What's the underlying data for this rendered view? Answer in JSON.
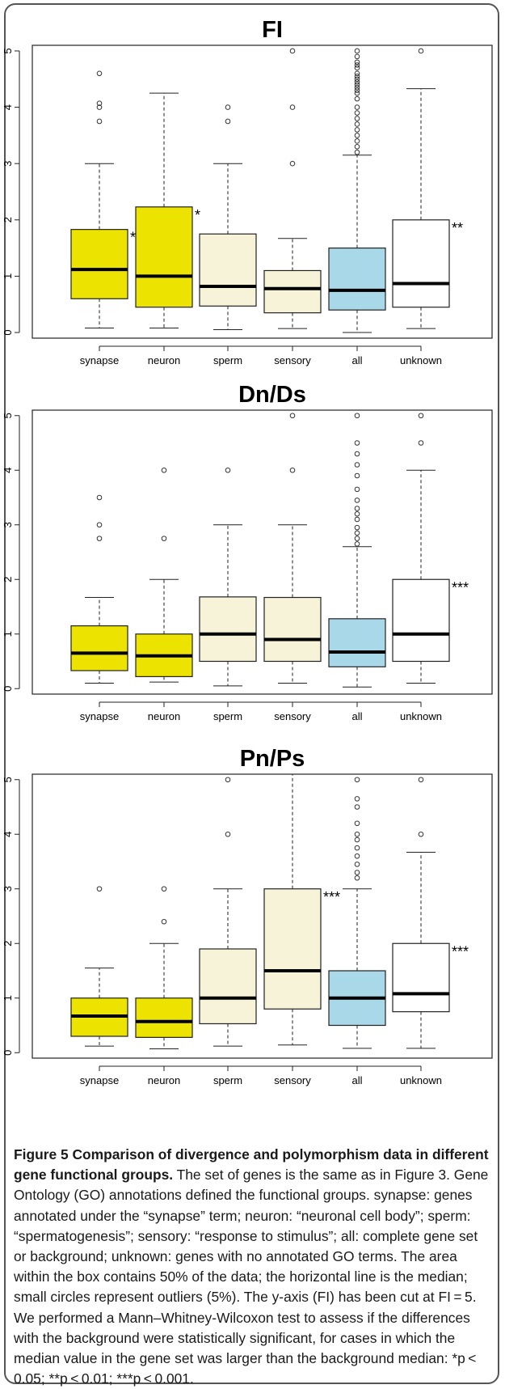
{
  "chart_data": [
    {
      "type": "box",
      "title": "FI",
      "categories": [
        "synapse",
        "neuron",
        "sperm",
        "sensory",
        "all",
        "unknown"
      ],
      "colors": [
        "#ece300",
        "#ece300",
        "#f7f3d8",
        "#f7f3d8",
        "#a9d9e8",
        "#ffffff"
      ],
      "yticks": [
        "0",
        "1",
        "2",
        "3",
        "4",
        "5"
      ],
      "ylim": [
        -0.1,
        5.1
      ],
      "boxes": [
        {
          "lw": 0.08,
          "q1": 0.6,
          "med": 1.12,
          "q3": 1.83,
          "uw": 3.0,
          "outliers": [
            3.75,
            4.0,
            4.07,
            4.6
          ]
        },
        {
          "lw": 0.08,
          "q1": 0.45,
          "med": 1.0,
          "q3": 2.23,
          "uw": 4.25,
          "outliers": []
        },
        {
          "lw": 0.05,
          "q1": 0.47,
          "med": 0.82,
          "q3": 1.75,
          "uw": 3.0,
          "outliers": [
            3.75,
            4.0
          ]
        },
        {
          "lw": 0.07,
          "q1": 0.35,
          "med": 0.78,
          "q3": 1.1,
          "uw": 1.67,
          "outliers": [
            3.0,
            4.0,
            5.0
          ]
        },
        {
          "lw": 0.0,
          "q1": 0.4,
          "med": 0.75,
          "q3": 1.5,
          "uw": 3.15,
          "outliers": [
            3.2,
            3.3,
            3.4,
            3.5,
            3.6,
            3.7,
            3.8,
            3.9,
            4.0,
            4.15,
            4.25,
            4.3,
            4.35,
            4.4,
            4.45,
            4.5,
            4.55,
            4.6,
            4.7,
            4.75,
            4.8,
            4.9,
            5.0
          ]
        },
        {
          "lw": 0.07,
          "q1": 0.45,
          "med": 0.87,
          "q3": 2.0,
          "uw": 4.33,
          "outliers": [
            5.0
          ]
        }
      ],
      "significance": [
        {
          "group": "synapse",
          "label": "*"
        },
        {
          "group": "neuron",
          "label": "*"
        },
        {
          "group": "unknown",
          "label": "**"
        }
      ]
    },
    {
      "type": "box",
      "title": "Dn/Ds",
      "categories": [
        "synapse",
        "neuron",
        "sperm",
        "sensory",
        "all",
        "unknown"
      ],
      "colors": [
        "#ece300",
        "#ece300",
        "#f7f3d8",
        "#f7f3d8",
        "#a9d9e8",
        "#ffffff"
      ],
      "yticks": [
        "0",
        "1",
        "2",
        "3",
        "4",
        "5"
      ],
      "ylim": [
        -0.1,
        5.1
      ],
      "boxes": [
        {
          "lw": 0.1,
          "q1": 0.33,
          "med": 0.65,
          "q3": 1.15,
          "uw": 1.67,
          "outliers": [
            2.75,
            3.0,
            3.5
          ]
        },
        {
          "lw": 0.12,
          "q1": 0.22,
          "med": 0.6,
          "q3": 1.0,
          "uw": 2.0,
          "outliers": [
            2.75,
            4.0
          ]
        },
        {
          "lw": 0.05,
          "q1": 0.5,
          "med": 1.0,
          "q3": 1.68,
          "uw": 3.0,
          "outliers": [
            4.0
          ]
        },
        {
          "lw": 0.1,
          "q1": 0.5,
          "med": 0.9,
          "q3": 1.67,
          "uw": 3.0,
          "outliers": [
            4.0,
            5.0
          ]
        },
        {
          "lw": 0.03,
          "q1": 0.4,
          "med": 0.67,
          "q3": 1.28,
          "uw": 2.6,
          "outliers": [
            2.65,
            2.75,
            2.85,
            2.95,
            3.1,
            3.2,
            3.3,
            3.45,
            3.65,
            3.9,
            4.1,
            4.3,
            4.5,
            5.0
          ]
        },
        {
          "lw": 0.1,
          "q1": 0.5,
          "med": 1.0,
          "q3": 2.0,
          "uw": 4.0,
          "outliers": [
            4.5,
            5.0
          ]
        }
      ],
      "significance": [
        {
          "group": "unknown",
          "label": "***"
        }
      ]
    },
    {
      "type": "box",
      "title": "Pn/Ps",
      "categories": [
        "synapse",
        "neuron",
        "sperm",
        "sensory",
        "all",
        "unknown"
      ],
      "colors": [
        "#ece300",
        "#ece300",
        "#f7f3d8",
        "#f7f3d8",
        "#a9d9e8",
        "#ffffff"
      ],
      "yticks": [
        "0",
        "1",
        "2",
        "3",
        "4",
        "5"
      ],
      "ylim": [
        -0.1,
        5.1
      ],
      "boxes": [
        {
          "lw": 0.12,
          "q1": 0.3,
          "med": 0.67,
          "q3": 1.0,
          "uw": 1.55,
          "outliers": [
            3.0
          ]
        },
        {
          "lw": 0.07,
          "q1": 0.28,
          "med": 0.57,
          "q3": 1.0,
          "uw": 2.0,
          "outliers": [
            2.4,
            3.0
          ]
        },
        {
          "lw": 0.12,
          "q1": 0.53,
          "med": 1.0,
          "q3": 1.9,
          "uw": 3.0,
          "outliers": [
            4.0,
            5.0
          ]
        },
        {
          "lw": 0.14,
          "q1": 0.8,
          "med": 1.5,
          "q3": 3.0,
          "uw": 5.1,
          "outliers": []
        },
        {
          "lw": 0.08,
          "q1": 0.5,
          "med": 1.0,
          "q3": 1.5,
          "uw": 3.0,
          "outliers": [
            3.2,
            3.3,
            3.45,
            3.6,
            3.75,
            3.9,
            4.0,
            4.2,
            4.5,
            4.65,
            5.0
          ]
        },
        {
          "lw": 0.08,
          "q1": 0.75,
          "med": 1.08,
          "q3": 2.0,
          "uw": 3.67,
          "outliers": [
            4.0,
            5.0
          ]
        }
      ],
      "significance": [
        {
          "group": "sensory",
          "label": "***"
        },
        {
          "group": "unknown",
          "label": "***"
        }
      ]
    }
  ],
  "caption": {
    "figure_label": "Figure 5",
    "figure_title": " Comparison of divergence and polymorphism data in different gene functional groups.",
    "text": " The set of genes is the same as in Figure 3. Gene Ontology (GO) annotations defined the functional groups. synapse: genes annotated under the “synapse” term; neuron: “neuronal cell body”; sperm: “spermatogenesis”; sensory: “response to stimulus”; all: complete gene set or background; unknown: genes with no annotated GO terms. The area within the box contains 50% of the data; the horizontal line is the median; small circles represent outliers (5%). The y-axis (FI) has been cut at FI = 5. We performed a Mann–Whitney-Wilcoxon test to assess if the differences with the background were statistically significant, for cases in which the median value in the gene set was larger than the background median: *p < 0.05; **p < 0.01; ***p < 0.001."
  }
}
